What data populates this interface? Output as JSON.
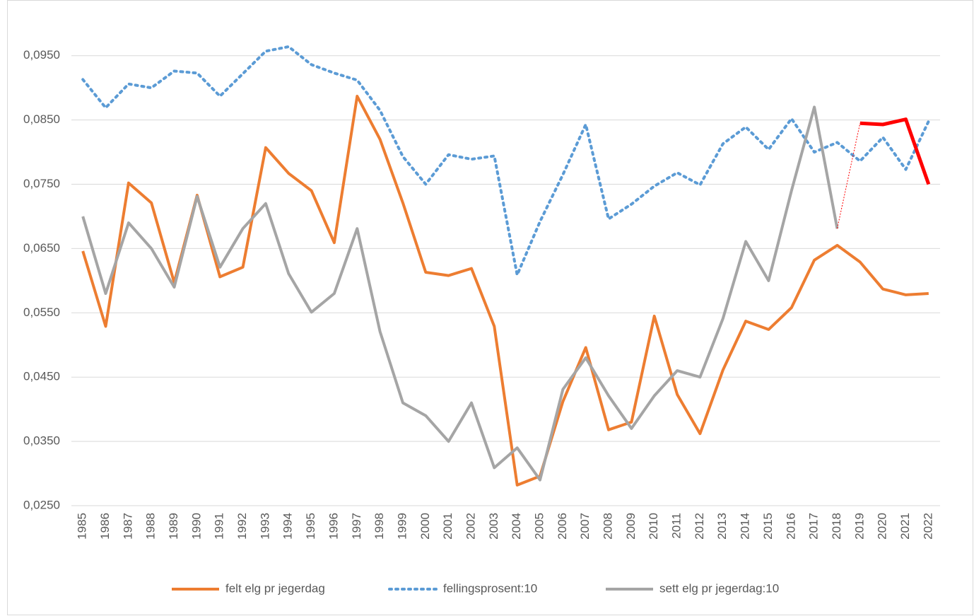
{
  "chart_data": {
    "type": "line",
    "categories": [
      "1985",
      "1986",
      "1987",
      "1988",
      "1989",
      "1990",
      "1991",
      "1992",
      "1993",
      "1994",
      "1995",
      "1996",
      "1997",
      "1998",
      "1999",
      "2000",
      "2001",
      "2002",
      "2003",
      "2004",
      "2005",
      "2006",
      "2007",
      "2008",
      "2009",
      "2010",
      "2011",
      "2012",
      "2013",
      "2014",
      "2015",
      "2016",
      "2017",
      "2018",
      "2019",
      "2020",
      "2021",
      "2022"
    ],
    "series": [
      {
        "name": "felt elg pr jegerdag",
        "color": "#ed7d31",
        "dash": "solid",
        "width": 4,
        "values": [
          0.0646,
          0.0529,
          0.0752,
          0.0721,
          0.0597,
          0.0733,
          0.0606,
          0.0621,
          0.0807,
          0.0767,
          0.074,
          0.0659,
          0.0887,
          0.082,
          0.0721,
          0.0613,
          0.0608,
          0.0619,
          0.0529,
          0.0282,
          0.0296,
          0.0412,
          0.0496,
          0.0368,
          0.038,
          0.0545,
          0.0423,
          0.0362,
          0.0461,
          0.0537,
          0.0524,
          0.0558,
          0.0632,
          0.0655,
          0.0629,
          0.0587,
          0.0578,
          0.058
        ]
      },
      {
        "name": "fellingsprosent:10",
        "color": "#5b9bd5",
        "dash": "dotted",
        "width": 4,
        "values": [
          0.0913,
          0.0869,
          0.0906,
          0.09,
          0.0926,
          0.0923,
          0.0887,
          0.0922,
          0.0957,
          0.0964,
          0.0936,
          0.0923,
          0.0912,
          0.0865,
          0.0793,
          0.075,
          0.0796,
          0.0789,
          0.0794,
          0.0609,
          0.0692,
          0.0765,
          0.0843,
          0.0696,
          0.0719,
          0.0747,
          0.0768,
          0.0749,
          0.0813,
          0.0839,
          0.0804,
          0.0852,
          0.08,
          0.0815,
          0.0786,
          0.0823,
          0.0773,
          0.0848
        ]
      },
      {
        "name": "sett elg pr jegerdag:10",
        "color": "#a5a5a5",
        "dash": "solid",
        "width": 4,
        "values": [
          0.07,
          0.058,
          0.069,
          0.065,
          0.059,
          0.0731,
          0.0621,
          0.0681,
          0.072,
          0.0611,
          0.0551,
          0.058,
          0.0681,
          0.0521,
          0.041,
          0.039,
          0.035,
          0.041,
          0.0309,
          0.034,
          0.029,
          0.0431,
          0.048,
          0.0421,
          0.037,
          0.0421,
          0.046,
          0.045,
          0.0541,
          0.0661,
          0.06,
          0.074,
          0.087,
          0.0681,
          null,
          null,
          null,
          null
        ]
      },
      {
        "color": "#ff0000",
        "dash": "solid",
        "width": 5,
        "values": [
          null,
          null,
          null,
          null,
          null,
          null,
          null,
          null,
          null,
          null,
          null,
          null,
          null,
          null,
          null,
          null,
          null,
          null,
          null,
          null,
          null,
          null,
          null,
          null,
          null,
          null,
          null,
          null,
          null,
          null,
          null,
          null,
          null,
          null,
          0.0845,
          0.0843,
          0.0851,
          0.075
        ]
      }
    ],
    "ylim": [
      0.025,
      0.0975
    ],
    "yticks": [
      {
        "value": 0.025,
        "label": "0,0250"
      },
      {
        "value": 0.035,
        "label": "0,0350"
      },
      {
        "value": 0.045,
        "label": "0,0450"
      },
      {
        "value": 0.055,
        "label": "0,0550"
      },
      {
        "value": 0.065,
        "label": "0,0650"
      },
      {
        "value": 0.075,
        "label": "0,0750"
      },
      {
        "value": 0.085,
        "label": "0,0850"
      },
      {
        "value": 0.095,
        "label": "0,0950"
      }
    ],
    "grid": true,
    "legend": "bottom"
  }
}
